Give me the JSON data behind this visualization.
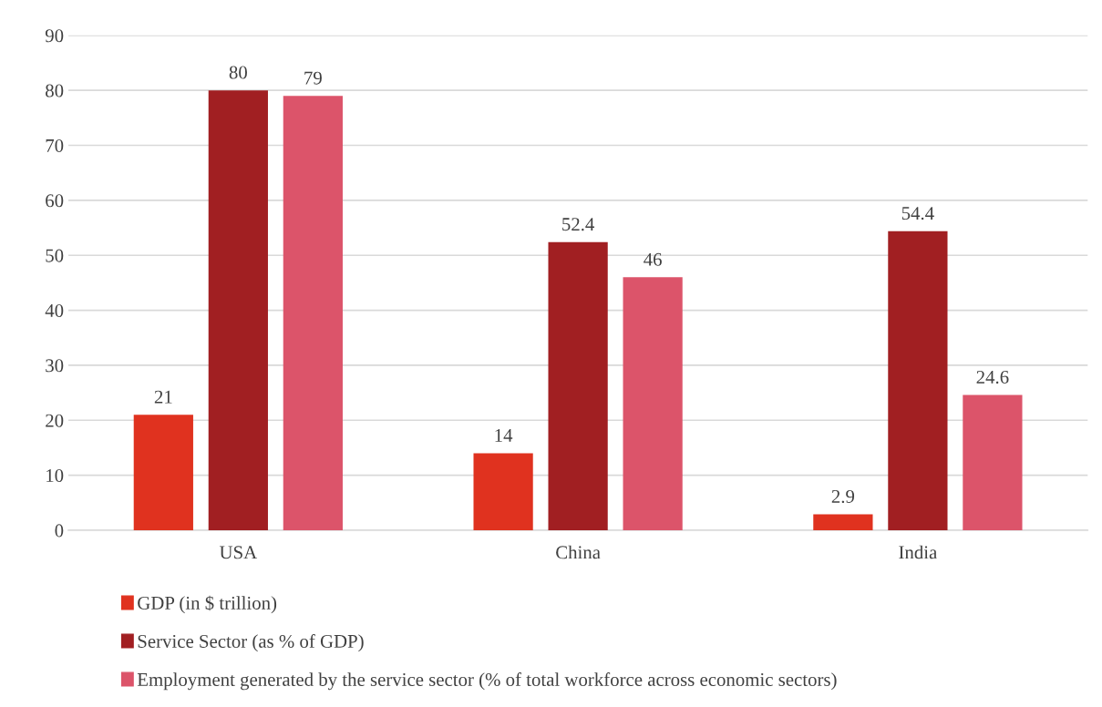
{
  "chart_data": {
    "type": "bar",
    "categories": [
      "USA",
      "China",
      "India"
    ],
    "series": [
      {
        "name": "GDP (in $ trillion)",
        "color": "#e0321f",
        "values": [
          21,
          14,
          2.9
        ]
      },
      {
        "name": "Service Sector (as % of GDP)",
        "color": "#a11f22",
        "values": [
          80,
          52.4,
          54.4
        ]
      },
      {
        "name": "Employment generated by the service sector (% of total workforce across economic sectors)",
        "color": "#dc546a",
        "values": [
          79,
          46,
          24.6
        ]
      }
    ],
    "ylim": [
      0,
      90
    ],
    "yticks": [
      0,
      10,
      20,
      30,
      40,
      50,
      60,
      70,
      80,
      90
    ],
    "grid": "y",
    "legend": "bottom",
    "data_labels": true
  }
}
